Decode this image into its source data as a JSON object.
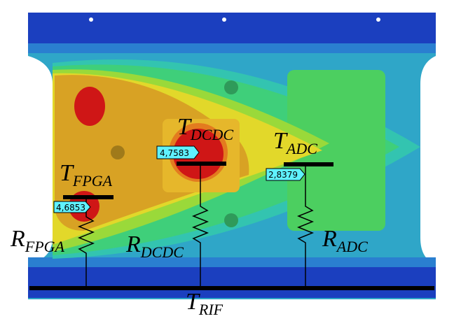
{
  "labels": {
    "t_fpga": {
      "symbol": "T",
      "subscript": "FPGA"
    },
    "t_dcdc": {
      "symbol": "T",
      "subscript": "DCDC"
    },
    "t_adc": {
      "symbol": "T",
      "subscript": "ADC"
    },
    "t_rif": {
      "symbol": "T",
      "subscript": "RIF"
    },
    "r_fpga": {
      "symbol": "R",
      "subscript": "FPGA"
    },
    "r_dcdc": {
      "symbol": "R",
      "subscript": "DCDC"
    },
    "r_adc": {
      "symbol": "R",
      "subscript": "ADC"
    }
  },
  "probes": {
    "fpga": "4,6853",
    "dcdc": "4,7583",
    "adc": "2,8379"
  }
}
